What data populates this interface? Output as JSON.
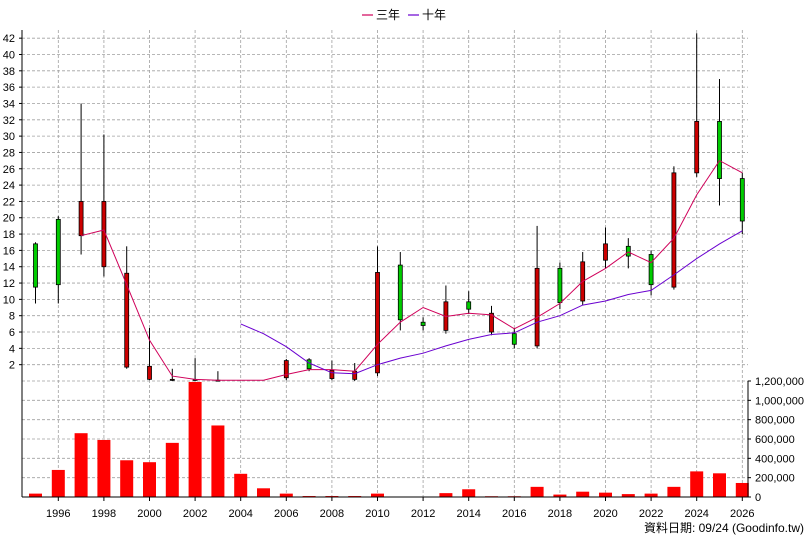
{
  "chart_data": {
    "type": "candlestick",
    "legend": {
      "position": "top-center",
      "items": [
        {
          "label": "三年",
          "color": "#d0005a"
        },
        {
          "label": "十年",
          "color": "#6a00d0"
        }
      ]
    },
    "footer": "資料日期: 09/24 (Goodinfo.tw)",
    "grid": true,
    "x_ticks": [
      "1996",
      "1998",
      "2000",
      "2002",
      "2004",
      "2006",
      "2008",
      "2010",
      "2012",
      "2014",
      "2016",
      "2018",
      "2020",
      "2022",
      "2024",
      "2026"
    ],
    "price_axis": {
      "ylim": [
        0,
        43
      ],
      "ticks": [
        "2",
        "4",
        "6",
        "8",
        "10",
        "12",
        "14",
        "16",
        "18",
        "20",
        "22",
        "24",
        "26",
        "28",
        "30",
        "32",
        "34",
        "36",
        "38",
        "40",
        "42"
      ]
    },
    "volume_axis": {
      "ylim": [
        0,
        1200000
      ],
      "ticks": [
        "0",
        "200,000",
        "400,000",
        "600,000",
        "800,000",
        "1,000,000",
        "1,200,000"
      ]
    },
    "candles": [
      {
        "year": 1995,
        "open": 11.5,
        "close": 16.8,
        "high": 17.0,
        "low": 9.5
      },
      {
        "year": 1996,
        "open": 11.8,
        "close": 19.8,
        "high": 20.2,
        "low": 9.5
      },
      {
        "year": 1997,
        "open": 22.0,
        "close": 17.8,
        "high": 34.0,
        "low": 15.5
      },
      {
        "year": 1998,
        "open": 22.0,
        "close": 14.0,
        "high": 30.2,
        "low": 12.8
      },
      {
        "year": 1999,
        "open": 13.2,
        "close": 1.7,
        "high": 16.5,
        "low": 1.5
      },
      {
        "year": 2000,
        "open": 1.8,
        "close": 0.2,
        "high": 6.5,
        "low": 0.1
      },
      {
        "year": 2001,
        "open": 0.2,
        "close": 0.1,
        "high": 1.5,
        "low": 0.0
      },
      {
        "year": 2002,
        "open": 0.2,
        "close": 0.1,
        "high": 2.8,
        "low": 0.0
      },
      {
        "year": 2003,
        "open": 0.1,
        "close": 0.0,
        "high": 1.2,
        "low": 0.0
      },
      {
        "year": 2006,
        "open": 2.5,
        "close": 0.4,
        "high": 2.7,
        "low": 0.1
      },
      {
        "year": 2007,
        "open": 1.5,
        "close": 2.6,
        "high": 2.8,
        "low": 1.2
      },
      {
        "year": 2008,
        "open": 1.3,
        "close": 0.3,
        "high": 2.5,
        "low": 0.1
      },
      {
        "year": 2009,
        "open": 1.2,
        "close": 0.2,
        "high": 2.2,
        "low": 0.0
      },
      {
        "year": 2010,
        "open": 13.3,
        "close": 1.0,
        "high": 16.5,
        "low": 0.6
      },
      {
        "year": 2011,
        "open": 7.5,
        "close": 14.2,
        "high": 15.8,
        "low": 6.2
      },
      {
        "year": 2012,
        "open": 6.8,
        "close": 7.2,
        "high": 7.8,
        "low": 6.2
      },
      {
        "year": 2013,
        "open": 9.7,
        "close": 6.2,
        "high": 11.7,
        "low": 5.8
      },
      {
        "year": 2014,
        "open": 8.8,
        "close": 9.7,
        "high": 11.0,
        "low": 8.2
      },
      {
        "year": 2015,
        "open": 8.3,
        "close": 6.0,
        "high": 9.2,
        "low": 5.6
      },
      {
        "year": 2016,
        "open": 4.5,
        "close": 5.8,
        "high": 6.5,
        "low": 4.0
      },
      {
        "year": 2017,
        "open": 13.8,
        "close": 4.3,
        "high": 19.0,
        "low": 4.0
      },
      {
        "year": 2018,
        "open": 9.6,
        "close": 13.8,
        "high": 14.5,
        "low": 8.8
      },
      {
        "year": 2019,
        "open": 14.6,
        "close": 9.8,
        "high": 15.8,
        "low": 9.3
      },
      {
        "year": 2020,
        "open": 16.8,
        "close": 14.8,
        "high": 18.8,
        "low": 13.8
      },
      {
        "year": 2021,
        "open": 15.3,
        "close": 16.5,
        "high": 17.5,
        "low": 13.8
      },
      {
        "year": 2022,
        "open": 11.8,
        "close": 15.5,
        "high": 16.0,
        "low": 10.5
      },
      {
        "year": 2023,
        "open": 25.5,
        "close": 11.5,
        "high": 26.3,
        "low": 11.2
      },
      {
        "year": 2024,
        "open": 31.8,
        "close": 25.5,
        "high": 42.6,
        "low": 25.0
      },
      {
        "year": 2025,
        "open": 24.8,
        "close": 31.8,
        "high": 37.0,
        "low": 21.5
      },
      {
        "year": 2026,
        "open": 19.6,
        "close": 24.8,
        "high": 25.5,
        "low": 18.0
      }
    ],
    "series": [
      {
        "name": "三年",
        "points": [
          [
            1997,
            17.8
          ],
          [
            1998,
            18.5
          ],
          [
            1999,
            11.8
          ],
          [
            2000,
            5.0
          ],
          [
            2001,
            0.6
          ],
          [
            2002,
            0.2
          ],
          [
            2003,
            0.1
          ],
          [
            2004,
            0.1
          ],
          [
            2005,
            0.1
          ],
          [
            2006,
            0.8
          ],
          [
            2007,
            1.4
          ],
          [
            2008,
            1.4
          ],
          [
            2009,
            1.2
          ],
          [
            2010,
            4.5
          ],
          [
            2011,
            7.2
          ],
          [
            2012,
            9.0
          ],
          [
            2013,
            7.9
          ],
          [
            2014,
            8.3
          ],
          [
            2015,
            8.1
          ],
          [
            2016,
            6.4
          ],
          [
            2017,
            7.8
          ],
          [
            2018,
            9.5
          ],
          [
            2019,
            12.2
          ],
          [
            2020,
            13.8
          ],
          [
            2021,
            15.8
          ],
          [
            2022,
            14.5
          ],
          [
            2023,
            17.5
          ],
          [
            2024,
            22.8
          ],
          [
            2025,
            27.0
          ],
          [
            2026,
            25.5
          ]
        ]
      },
      {
        "name": "十年",
        "points": [
          [
            2004,
            7.0
          ],
          [
            2005,
            5.8
          ],
          [
            2006,
            4.2
          ],
          [
            2007,
            2.2
          ],
          [
            2008,
            1.0
          ],
          [
            2009,
            0.9
          ],
          [
            2010,
            2.0
          ],
          [
            2011,
            2.8
          ],
          [
            2012,
            3.4
          ],
          [
            2013,
            4.3
          ],
          [
            2014,
            5.1
          ],
          [
            2015,
            5.7
          ],
          [
            2016,
            5.9
          ],
          [
            2017,
            7.2
          ],
          [
            2018,
            8.0
          ],
          [
            2019,
            9.3
          ],
          [
            2020,
            9.8
          ],
          [
            2021,
            10.6
          ],
          [
            2022,
            11.1
          ],
          [
            2023,
            13.0
          ],
          [
            2024,
            15.0
          ],
          [
            2025,
            16.8
          ],
          [
            2026,
            18.4
          ]
        ]
      }
    ],
    "volume": [
      {
        "year": 1995,
        "value": 35000
      },
      {
        "year": 1996,
        "value": 280000
      },
      {
        "year": 1997,
        "value": 660000
      },
      {
        "year": 1998,
        "value": 590000
      },
      {
        "year": 1999,
        "value": 380000
      },
      {
        "year": 2000,
        "value": 360000
      },
      {
        "year": 2001,
        "value": 560000
      },
      {
        "year": 2002,
        "value": 1190000
      },
      {
        "year": 2003,
        "value": 740000
      },
      {
        "year": 2004,
        "value": 240000
      },
      {
        "year": 2005,
        "value": 90000
      },
      {
        "year": 2006,
        "value": 35000
      },
      {
        "year": 2007,
        "value": 10000
      },
      {
        "year": 2008,
        "value": 10000
      },
      {
        "year": 2009,
        "value": 10000
      },
      {
        "year": 2010,
        "value": 35000
      },
      {
        "year": 2011,
        "value": 5000
      },
      {
        "year": 2012,
        "value": 5000
      },
      {
        "year": 2013,
        "value": 40000
      },
      {
        "year": 2014,
        "value": 80000
      },
      {
        "year": 2015,
        "value": 8000
      },
      {
        "year": 2016,
        "value": 8000
      },
      {
        "year": 2017,
        "value": 105000
      },
      {
        "year": 2018,
        "value": 25000
      },
      {
        "year": 2019,
        "value": 55000
      },
      {
        "year": 2020,
        "value": 45000
      },
      {
        "year": 2021,
        "value": 30000
      },
      {
        "year": 2022,
        "value": 35000
      },
      {
        "year": 2023,
        "value": 105000
      },
      {
        "year": 2024,
        "value": 265000
      },
      {
        "year": 2025,
        "value": 245000
      },
      {
        "year": 2026,
        "value": 145000
      }
    ],
    "colors": {
      "up": "#00cc00",
      "down": "#cc0000",
      "volume": "#ff0000",
      "grid": "#a0a0a0",
      "axis": "#000000"
    }
  }
}
